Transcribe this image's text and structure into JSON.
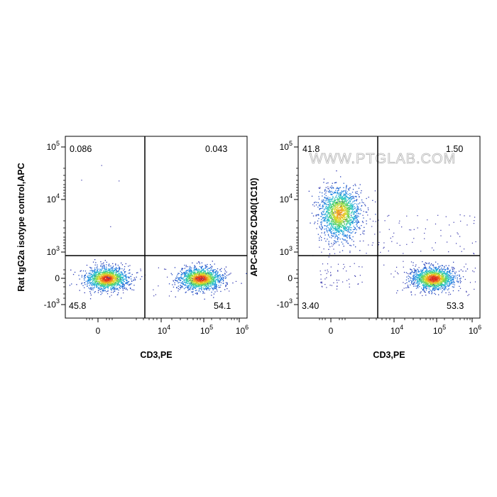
{
  "watermark": "WWW.PTGLAB.COM",
  "chart_data": [
    {
      "type": "scatter",
      "subtype": "flow-cytometry-density-plot",
      "xlabel": "CD3,PE",
      "ylabel": "Rat IgG2a isotype control,APC",
      "x_scale": "biexponential",
      "y_scale": "biexponential",
      "x_ticks": [
        "0",
        "10^4",
        "10^5",
        "10^6"
      ],
      "y_ticks": [
        "-10^3",
        "0",
        "10^3",
        "10^4",
        "10^5"
      ],
      "quadrants": {
        "upper_left": "0.086",
        "upper_right": "0.043",
        "lower_left": "45.8",
        "lower_right": "54.1"
      },
      "populations": [
        {
          "name": "CD3-",
          "x_center": 0,
          "y_center": 0,
          "density": "high"
        },
        {
          "name": "CD3+",
          "x_center": 50000,
          "y_center": 0,
          "density": "high"
        }
      ]
    },
    {
      "type": "scatter",
      "subtype": "flow-cytometry-density-plot",
      "xlabel": "CD3,PE",
      "ylabel": "APC-65062 CD40(1C10)",
      "x_scale": "biexponential",
      "y_scale": "biexponential",
      "x_ticks": [
        "0",
        "10^4",
        "10^5",
        "10^6"
      ],
      "y_ticks": [
        "-10^3",
        "0",
        "10^3",
        "10^4",
        "10^5"
      ],
      "quadrants": {
        "upper_left": "41.8",
        "upper_right": "1.50",
        "lower_left": "3.40",
        "lower_right": "53.3"
      },
      "populations": [
        {
          "name": "CD3- CD40+",
          "x_center": 0,
          "y_center": 2000,
          "density": "high"
        },
        {
          "name": "CD3+ CD40-",
          "x_center": 50000,
          "y_center": 0,
          "density": "high"
        }
      ]
    }
  ]
}
